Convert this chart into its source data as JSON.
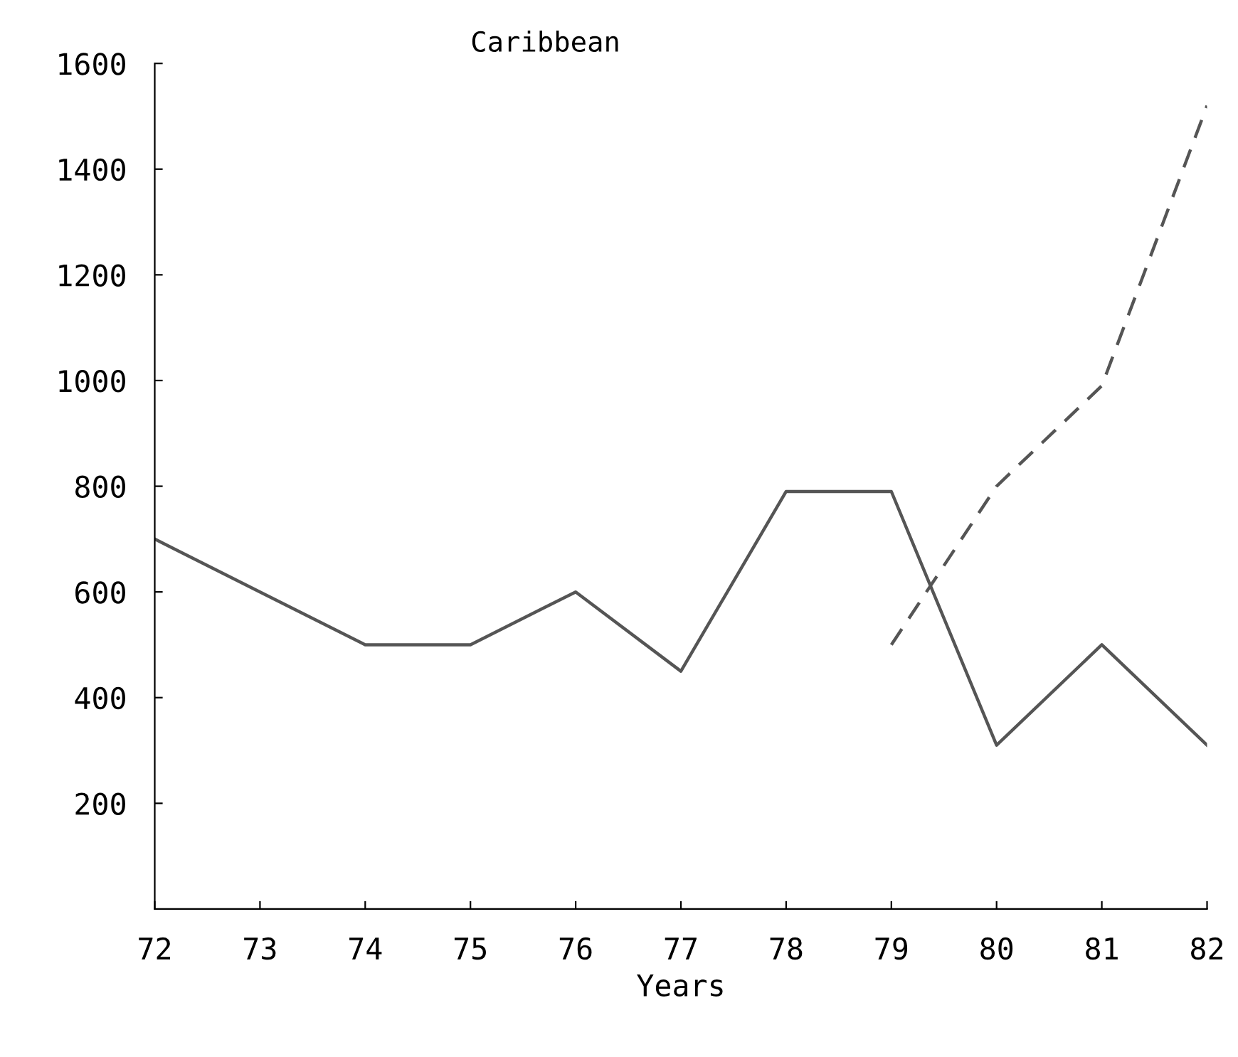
{
  "chart_data": {
    "type": "line",
    "title": "Caribbean",
    "xlabel": "Years",
    "x": [
      72,
      73,
      74,
      75,
      76,
      77,
      78,
      79,
      80,
      81,
      82
    ],
    "series": [
      {
        "color": "#555555",
        "line_style": "solid",
        "values": [
          700,
          600,
          500,
          500,
          600,
          450,
          790,
          790,
          310,
          500,
          310
        ]
      },
      {
        "color": "#555555",
        "line_style": "dashed",
        "values": [
          null,
          null,
          null,
          null,
          null,
          null,
          null,
          500,
          800,
          990,
          1520
        ]
      }
    ],
    "xlim": [
      72,
      82
    ],
    "xticks": [
      72,
      73,
      74,
      75,
      76,
      77,
      78,
      79,
      80,
      81,
      82
    ],
    "ylim": [
      0,
      1600
    ],
    "yticks": [
      200,
      400,
      600,
      800,
      1000,
      1200,
      1400,
      1600
    ],
    "grid": false,
    "legend": false,
    "marker": "none"
  }
}
